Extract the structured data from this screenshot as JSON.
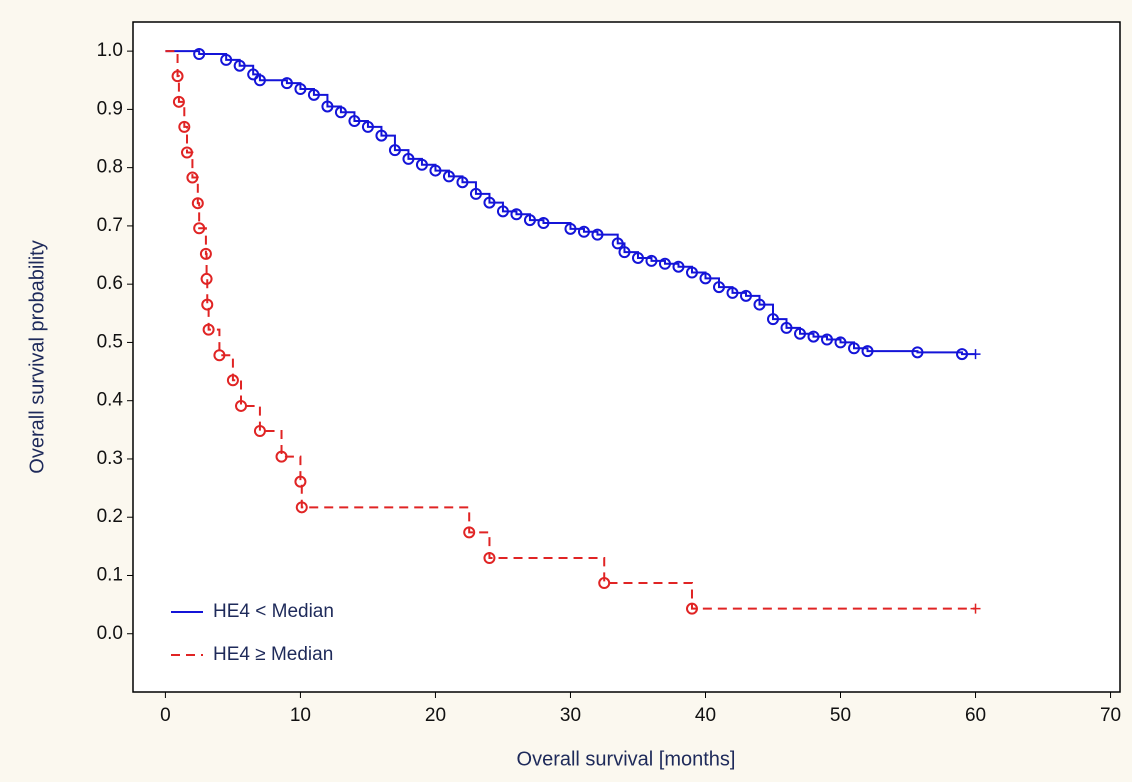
{
  "chart_data": {
    "type": "line",
    "x_label": "Overall survival [months]",
    "y_label": "Overall survival probability",
    "xlim": [
      -2.4,
      70.7
    ],
    "ylim": [
      -0.1,
      1.05
    ],
    "xticks": [
      0,
      10,
      20,
      30,
      40,
      50,
      60,
      70
    ],
    "yticks": [
      {
        "value": 0,
        "label": "0.0"
      },
      0.1,
      0.2,
      0.3,
      0.4,
      0.5,
      0.6,
      0.7,
      0.8,
      0.9,
      {
        "value": 1,
        "label": "1.0"
      }
    ],
    "legend": "lower left",
    "series": [
      {
        "name": "HE4 < Median",
        "color": "#1414d8",
        "linestyle": "solid",
        "x": [
          0,
          2.5,
          4.5,
          5.5,
          6.5,
          7,
          9,
          10,
          11,
          12,
          13,
          14,
          15,
          16,
          17,
          18,
          19,
          20,
          21,
          22,
          23,
          24,
          25,
          26,
          27,
          28,
          30,
          31,
          32,
          33.5,
          34,
          35,
          36,
          37,
          38,
          39,
          40,
          41,
          42,
          43,
          44,
          45,
          46,
          47,
          48,
          49,
          50,
          51,
          52,
          55.7,
          59,
          60
        ],
        "values": [
          1.0,
          0.995,
          0.985,
          0.975,
          0.96,
          0.95,
          0.945,
          0.935,
          0.925,
          0.905,
          0.895,
          0.88,
          0.87,
          0.855,
          0.83,
          0.815,
          0.805,
          0.795,
          0.785,
          0.775,
          0.755,
          0.74,
          0.725,
          0.72,
          0.71,
          0.705,
          0.695,
          0.69,
          0.685,
          0.67,
          0.655,
          0.645,
          0.64,
          0.635,
          0.63,
          0.62,
          0.61,
          0.595,
          0.585,
          0.58,
          0.565,
          0.54,
          0.525,
          0.515,
          0.51,
          0.505,
          0.5,
          0.49,
          0.485,
          0.483,
          0.48,
          0.48
        ]
      },
      {
        "name": "HE4 ≥ Median",
        "color": "#e02424",
        "linestyle": "dashed",
        "x": [
          0,
          0.9,
          1.0,
          1.4,
          1.6,
          2.0,
          2.4,
          2.5,
          3.0,
          3.05,
          3.1,
          3.2,
          4.0,
          5.0,
          5.6,
          7.0,
          8.6,
          10.0,
          10.1,
          22.5,
          24.0,
          32.5,
          39.0,
          60.0
        ],
        "values": [
          1.0,
          0.957,
          0.913,
          0.87,
          0.826,
          0.783,
          0.739,
          0.696,
          0.652,
          0.609,
          0.565,
          0.522,
          0.478,
          0.435,
          0.391,
          0.348,
          0.304,
          0.261,
          0.217,
          0.174,
          0.13,
          0.087,
          0.043,
          0.043
        ]
      }
    ]
  }
}
